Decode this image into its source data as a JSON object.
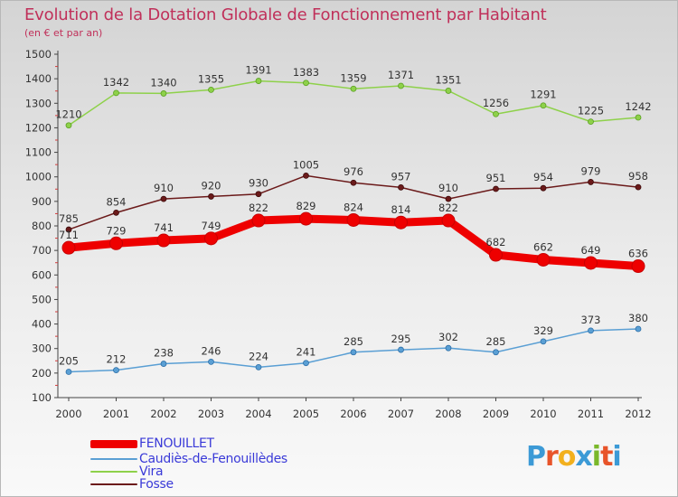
{
  "title": "Evolution de la Dotation Globale de Fonctionnement par Habitant",
  "subtitle": "(en € et par an)",
  "logo": {
    "letters": [
      "P",
      "r",
      "o",
      "x",
      "i",
      "t",
      "i"
    ],
    "colors": [
      "#3c9ad6",
      "#e8542a",
      "#f2b01e",
      "#3c9ad6",
      "#7ab82a",
      "#e8542a",
      "#3c9ad6"
    ]
  },
  "chart_data": {
    "type": "line",
    "title": "Evolution de la Dotation Globale de Fonctionnement par Habitant",
    "subtitle": "(en € et par an)",
    "x": [
      "2000",
      "2001",
      "2002",
      "2003",
      "2004",
      "2005",
      "2006",
      "2007",
      "2008",
      "2009",
      "2010",
      "2011",
      "2012"
    ],
    "ylim": [
      100,
      1500
    ],
    "yticks": [
      "100",
      "200",
      "300",
      "400",
      "500",
      "600",
      "700",
      "800",
      "900",
      "1000",
      "1100",
      "1200",
      "1300",
      "1400",
      "1500"
    ],
    "grid": false,
    "legend_position": "bottom-left",
    "series": [
      {
        "name": "FENOUILLET",
        "color": "#ee0000",
        "values": [
          711,
          729,
          741,
          749,
          822,
          829,
          824,
          814,
          822,
          682,
          662,
          649,
          636
        ],
        "labels": [
          "711",
          "729",
          "741",
          "749",
          "822",
          "829",
          "824",
          "814",
          "822",
          "682",
          "662",
          "649",
          "636"
        ]
      },
      {
        "name": "Caudiès-de-Fenouillèdes",
        "color": "#5a9fd4",
        "values": [
          205,
          212,
          238,
          246,
          224,
          241,
          285,
          295,
          302,
          285,
          329,
          373,
          380
        ],
        "labels": [
          "205",
          "212",
          "238",
          "246",
          "224",
          "241",
          "285",
          "295",
          "302",
          "285",
          "329",
          "373",
          "380"
        ]
      },
      {
        "name": "Vira",
        "color": "#8ed14a",
        "values": [
          1210,
          1342,
          1340,
          1355,
          1391,
          1383,
          1359,
          1371,
          1351,
          1256,
          1291,
          1225,
          1242
        ],
        "labels": [
          "1210",
          "1342",
          "1340",
          "1355",
          "1391",
          "1383",
          "1359",
          "1371",
          "1351",
          "1256",
          "1291",
          "1225",
          "1242"
        ]
      },
      {
        "name": "Fosse",
        "color": "#6b1a1a",
        "values": [
          785,
          854,
          910,
          920,
          930,
          1005,
          976,
          957,
          910,
          951,
          954,
          979,
          958
        ],
        "labels": [
          "785",
          "854",
          "910",
          "920",
          "930",
          "1005",
          "976",
          "957",
          "910",
          "951",
          "954",
          "979",
          "958"
        ]
      }
    ]
  }
}
